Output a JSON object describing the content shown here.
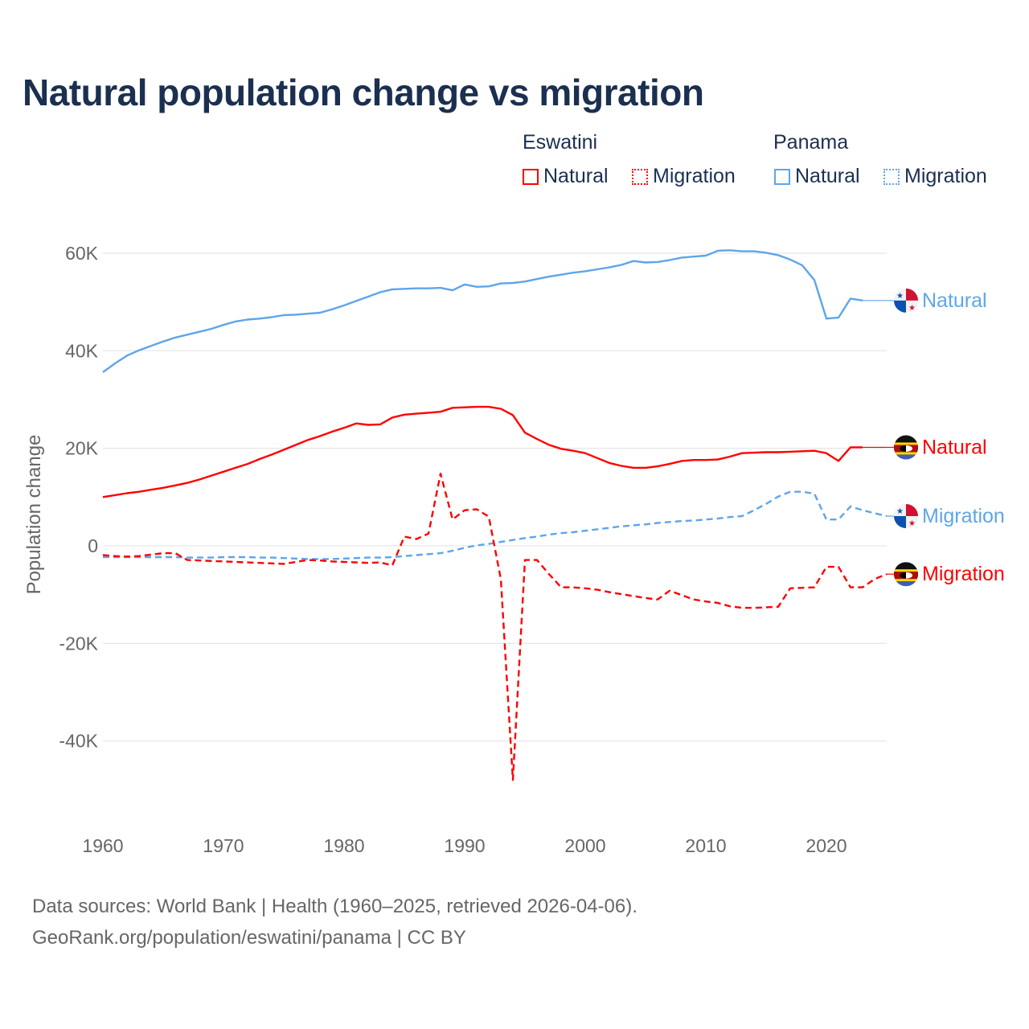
{
  "title": "Natural population change vs migration",
  "legend": {
    "groups": [
      {
        "name": "Eswatini",
        "color": "#ff0000",
        "items": [
          "Natural",
          "Migration"
        ]
      },
      {
        "name": "Panama",
        "color": "#5ea5ea",
        "items": [
          "Natural",
          "Migration"
        ]
      }
    ]
  },
  "footer": {
    "line1": "Data sources: World Bank | Health (1960–2025, retrieved 2026-04-06).",
    "line2": "GeoRank.org/population/eswatini/panama | CC BY"
  },
  "chart_data": {
    "type": "line",
    "title": "Natural population change vs migration",
    "xlabel": "",
    "ylabel": "Population change",
    "xlim": [
      1960,
      2025
    ],
    "ylim": [
      -50000,
      65000
    ],
    "xticks": [
      1960,
      1970,
      1980,
      1990,
      2000,
      2010,
      2020
    ],
    "xtick_labels": [
      "1960",
      "1970",
      "1980",
      "1990",
      "2000",
      "2010",
      "2020"
    ],
    "yticks": [
      -40000,
      -20000,
      0,
      20000,
      40000,
      60000
    ],
    "ytick_labels": [
      "-40K",
      "-20K",
      "0",
      "20K",
      "40K",
      "60K"
    ],
    "grid": true,
    "legend_position": "top-right",
    "series": [
      {
        "name": "Panama Natural",
        "country": "Panama",
        "kind": "Natural",
        "color": "#5ea5ea",
        "dash": "solid",
        "end_label": "Natural",
        "start_year": 1960,
        "values": [
          35.6,
          37.4,
          39.0,
          40.1,
          41.0,
          41.9,
          42.7,
          43.3,
          43.9,
          44.5,
          45.3,
          46.0,
          46.4,
          46.6,
          46.9,
          47.3,
          47.4,
          47.6,
          47.8,
          48.5,
          49.3,
          50.2,
          51.1,
          52.0,
          52.6,
          52.7,
          52.8,
          52.8,
          52.9,
          52.4,
          53.6,
          53.1,
          53.2,
          53.8,
          53.9,
          54.2,
          54.7,
          55.2,
          55.6,
          56.0,
          56.3,
          56.7,
          57.1,
          57.6,
          58.4,
          58.1,
          58.2,
          58.6,
          59.1,
          59.3,
          59.5,
          60.5,
          60.6,
          60.4,
          60.4,
          60.1,
          59.6,
          58.7,
          57.5,
          54.5,
          46.6,
          46.8,
          50.7,
          50.3
        ]
      },
      {
        "name": "Eswatini Natural",
        "country": "Eswatini",
        "kind": "Natural",
        "color": "#ff0000",
        "dash": "solid",
        "end_label": "Natural",
        "start_year": 1960,
        "values": [
          10.0,
          10.4,
          10.8,
          11.1,
          11.5,
          11.9,
          12.4,
          12.9,
          13.6,
          14.4,
          15.2,
          16.0,
          16.8,
          17.8,
          18.7,
          19.7,
          20.7,
          21.7,
          22.5,
          23.4,
          24.2,
          25.1,
          24.8,
          24.9,
          26.3,
          26.9,
          27.1,
          27.3,
          27.5,
          28.3,
          28.4,
          28.5,
          28.5,
          28.1,
          26.8,
          23.2,
          21.9,
          20.7,
          19.9,
          19.5,
          19.0,
          18.0,
          17.0,
          16.4,
          16.0,
          16.0,
          16.3,
          16.8,
          17.4,
          17.6,
          17.6,
          17.7,
          18.3,
          19.0,
          19.1,
          19.2,
          19.2,
          19.3,
          19.4,
          19.5,
          19.0,
          17.4,
          20.2,
          20.2
        ]
      },
      {
        "name": "Panama Migration",
        "country": "Panama",
        "kind": "Migration",
        "color": "#5ea5ea",
        "dash": "dashed",
        "end_label": "Migration",
        "start_year": 1960,
        "values": [
          -2.3,
          -2.3,
          -2.3,
          -2.3,
          -2.3,
          -2.3,
          -2.3,
          -2.4,
          -2.4,
          -2.4,
          -2.3,
          -2.3,
          -2.3,
          -2.4,
          -2.4,
          -2.5,
          -2.6,
          -2.7,
          -2.7,
          -2.7,
          -2.6,
          -2.5,
          -2.4,
          -2.4,
          -2.3,
          -2.1,
          -1.9,
          -1.7,
          -1.5,
          -1.0,
          -0.4,
          0.1,
          0.4,
          0.8,
          1.2,
          1.6,
          1.9,
          2.3,
          2.6,
          2.8,
          3.1,
          3.4,
          3.7,
          4.0,
          4.2,
          4.4,
          4.7,
          4.9,
          5.1,
          5.2,
          5.4,
          5.6,
          5.9,
          6.1,
          7.3,
          8.6,
          10.1,
          11.1,
          11.1,
          10.7,
          5.4,
          5.4,
          8.1,
          7.3,
          6.7,
          6.1
        ]
      },
      {
        "name": "Eswatini Migration",
        "country": "Eswatini",
        "kind": "Migration",
        "color": "#ff0000",
        "dash": "dashed",
        "end_label": "Migration",
        "start_year": 1960,
        "values": [
          -1.9,
          -2.1,
          -2.2,
          -2.1,
          -1.8,
          -1.5,
          -1.5,
          -2.9,
          -3.0,
          -3.1,
          -3.2,
          -3.3,
          -3.4,
          -3.5,
          -3.6,
          -3.7,
          -3.3,
          -2.9,
          -3.0,
          -3.2,
          -3.3,
          -3.4,
          -3.5,
          -3.4,
          -4.0,
          1.9,
          1.4,
          2.5,
          14.8,
          5.4,
          7.3,
          7.5,
          6.0,
          -6.8,
          -48.0,
          -2.9,
          -2.9,
          -5.8,
          -8.5,
          -8.5,
          -8.7,
          -9.0,
          -9.5,
          -9.9,
          -10.3,
          -10.7,
          -11.0,
          -9.2,
          -10.1,
          -11.0,
          -11.4,
          -11.7,
          -12.4,
          -12.7,
          -12.7,
          -12.6,
          -12.5,
          -8.7,
          -8.6,
          -8.5,
          -4.3,
          -4.3,
          -8.5,
          -8.5,
          -6.8,
          -5.8
        ]
      }
    ],
    "value_unit": "thousands"
  }
}
